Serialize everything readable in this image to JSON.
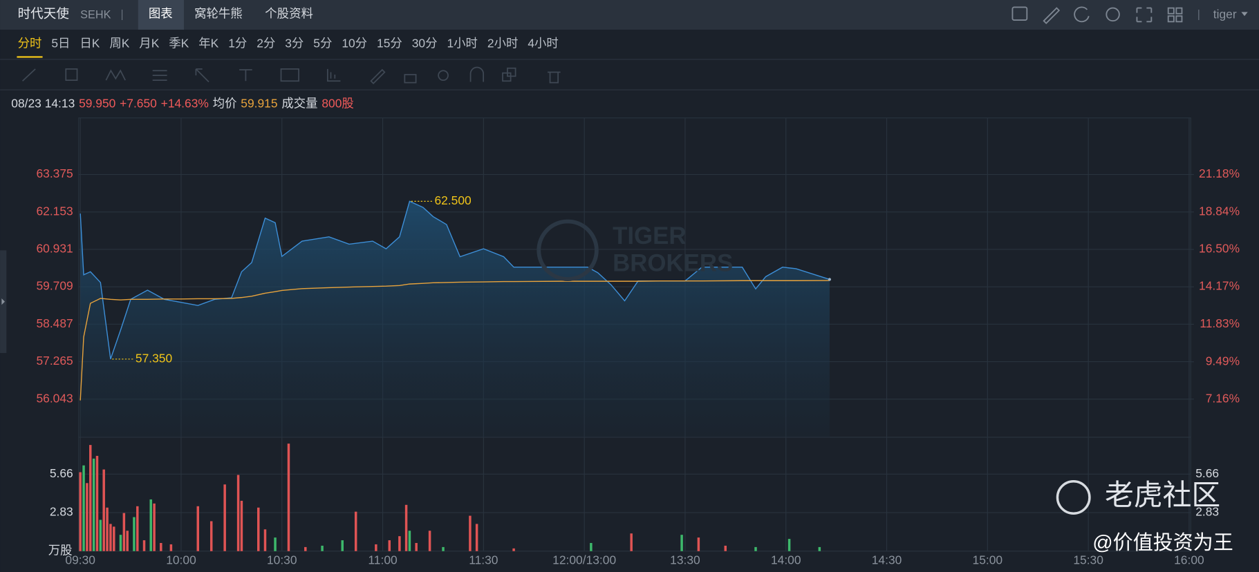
{
  "header": {
    "symbol": "时代天使",
    "exchange": "SEHK",
    "tabs": [
      "图表",
      "窝轮牛熊",
      "个股资料"
    ],
    "user": "tiger"
  },
  "periods": [
    "分时",
    "5日",
    "日K",
    "周K",
    "月K",
    "季K",
    "年K",
    "1分",
    "2分",
    "3分",
    "5分",
    "10分",
    "15分",
    "30分",
    "1小时",
    "2小时",
    "4小时"
  ],
  "quote": {
    "time": "08/23 14:13",
    "price": "59.950",
    "change": "+7.650",
    "change_pct": "+14.63%",
    "avg_label": "均价",
    "avg": "59.915",
    "volume_label": "成交量",
    "volume": "800股"
  },
  "watermarks": {
    "brand": [
      "TIGER",
      "BROKERS"
    ],
    "community": "老虎社区",
    "author": "@价值投资为王"
  },
  "chart_data": [
    {
      "type": "line",
      "x": [
        "09:30",
        "09:31",
        "09:33",
        "09:36",
        "09:39",
        "09:42",
        "09:45",
        "09:50",
        "09:55",
        "10:00",
        "10:05",
        "10:10",
        "10:15",
        "10:18",
        "10:21",
        "10:25",
        "10:28",
        "10:30",
        "10:36",
        "10:44",
        "10:50",
        "10:57",
        "11:01",
        "11:05",
        "11:08",
        "11:12",
        "11:15",
        "11:19",
        "11:23",
        "11:30",
        "11:36",
        "11:39",
        "11:53",
        "13:01",
        "13:04",
        "13:08",
        "13:12",
        "13:16",
        "13:23",
        "13:30",
        "13:35",
        "13:47",
        "13:51",
        "13:54",
        "13:59",
        "14:03",
        "14:13"
      ],
      "series": [
        {
          "color": "#3d8fd8",
          "area": true,
          "values": [
            62.1,
            60.1,
            60.2,
            59.85,
            57.35,
            58.3,
            59.3,
            59.6,
            59.3,
            59.2,
            59.1,
            59.3,
            59.35,
            60.2,
            60.5,
            61.95,
            61.8,
            60.7,
            61.2,
            61.34,
            61.1,
            61.2,
            60.95,
            61.34,
            62.5,
            62.3,
            62.0,
            61.74,
            60.69,
            60.95,
            60.69,
            60.35,
            60.35,
            60.35,
            60.17,
            59.77,
            59.25,
            59.9,
            59.9,
            59.9,
            60.35,
            60.35,
            59.64,
            60.04,
            60.35,
            60.3,
            59.95
          ]
        },
        {
          "color": "#e8a33c",
          "values": [
            56.0,
            58.07,
            59.17,
            59.33,
            59.3,
            59.28,
            59.3,
            59.3,
            59.31,
            59.31,
            59.32,
            59.32,
            59.33,
            59.36,
            59.4,
            59.5,
            59.55,
            59.59,
            59.65,
            59.68,
            59.7,
            59.72,
            59.73,
            59.75,
            59.8,
            59.82,
            59.84,
            59.85,
            59.86,
            59.87,
            59.88,
            59.88,
            59.89,
            59.89,
            59.89,
            59.89,
            59.89,
            59.89,
            59.9,
            59.9,
            59.9,
            59.91,
            59.91,
            59.91,
            59.91,
            59.91,
            59.915
          ]
        }
      ],
      "xlim": [
        "09:30",
        "16:00"
      ],
      "xticks": [
        "09:30",
        "10:00",
        "10:30",
        "11:00",
        "11:30",
        "12:00/13:00",
        "13:30",
        "14:00",
        "14:30",
        "15:00",
        "15:30",
        "16:00"
      ],
      "ylim": [
        54.799,
        65.221
      ],
      "yticks": [
        56.043,
        57.265,
        58.487,
        59.709,
        60.931,
        62.153,
        63.375
      ],
      "y2lim": [
        4.782,
        24.709
      ],
      "y2ticks": [
        {
          "value": 7.16,
          "label": "7.16%"
        },
        {
          "value": 9.49,
          "label": "9.49%"
        },
        {
          "value": 11.83,
          "label": "11.83%"
        },
        {
          "value": 14.17,
          "label": "14.17%"
        },
        {
          "value": 16.5,
          "label": "16.50%"
        },
        {
          "value": 18.84,
          "label": "18.84%"
        },
        {
          "value": 21.18,
          "label": "21.18%"
        }
      ],
      "annotations": [
        {
          "x": "11:08",
          "value": 62.5,
          "label": "62.500"
        },
        {
          "x": "09:39",
          "value": 57.35,
          "label": "57.350"
        }
      ],
      "grid": true
    },
    {
      "type": "bar",
      "unit": "万股",
      "x": [
        "09:30",
        "09:31",
        "09:32",
        "09:33",
        "09:34",
        "09:35",
        "09:36",
        "09:37",
        "09:38",
        "09:39",
        "09:40",
        "09:42",
        "09:43",
        "09:44",
        "09:46",
        "09:47",
        "09:49",
        "09:51",
        "09:52",
        "09:54",
        "09:57",
        "10:05",
        "10:09",
        "10:13",
        "10:17",
        "10:18",
        "10:23",
        "10:25",
        "10:28",
        "10:32",
        "10:37",
        "10:42",
        "10:48",
        "10:52",
        "10:58",
        "11:02",
        "11:05",
        "11:07",
        "11:08",
        "11:10",
        "11:14",
        "11:18",
        "11:26",
        "11:28",
        "11:39",
        "13:02",
        "13:14",
        "13:29",
        "13:34",
        "13:42",
        "13:51",
        "14:01",
        "14:10"
      ],
      "values": [
        5.8,
        6.3,
        5.0,
        7.8,
        6.8,
        7.0,
        2.3,
        6.0,
        3.2,
        2.0,
        1.8,
        1.2,
        2.8,
        1.5,
        2.5,
        3.3,
        0.8,
        3.8,
        3.5,
        0.6,
        0.5,
        3.3,
        2.2,
        4.9,
        5.6,
        3.7,
        3.2,
        1.6,
        1.0,
        7.9,
        0.3,
        0.4,
        0.8,
        2.9,
        0.5,
        0.8,
        1.1,
        3.4,
        1.5,
        0.6,
        1.5,
        0.3,
        2.6,
        2.0,
        0.2,
        0.6,
        1.3,
        1.2,
        1.0,
        0.4,
        0.3,
        0.9,
        0.3
      ],
      "colors": [
        "#e05454",
        "#3db86b",
        "#e05454",
        "#e05454",
        "#3db86b",
        "#e05454",
        "#3db86b",
        "#e05454",
        "#e05454",
        "#e05454",
        "#e05454",
        "#3db86b",
        "#e05454",
        "#e05454",
        "#3db86b",
        "#e05454",
        "#e05454",
        "#3db86b",
        "#e05454",
        "#e05454",
        "#e05454",
        "#e05454",
        "#e05454",
        "#e05454",
        "#e05454",
        "#e05454",
        "#e05454",
        "#e05454",
        "#3db86b",
        "#e05454",
        "#e05454",
        "#3db86b",
        "#3db86b",
        "#e05454",
        "#e05454",
        "#e05454",
        "#e05454",
        "#e05454",
        "#3db86b",
        "#e05454",
        "#e05454",
        "#3db86b",
        "#e05454",
        "#e05454",
        "#e05454",
        "#3db86b",
        "#e05454",
        "#3db86b",
        "#e05454",
        "#e05454",
        "#3db86b",
        "#3db86b",
        "#3db86b"
      ],
      "xlim": [
        "09:30",
        "16:00"
      ],
      "ylim": [
        0,
        8.37
      ],
      "yticks": [
        2.83,
        5.66
      ],
      "grid": true
    }
  ]
}
